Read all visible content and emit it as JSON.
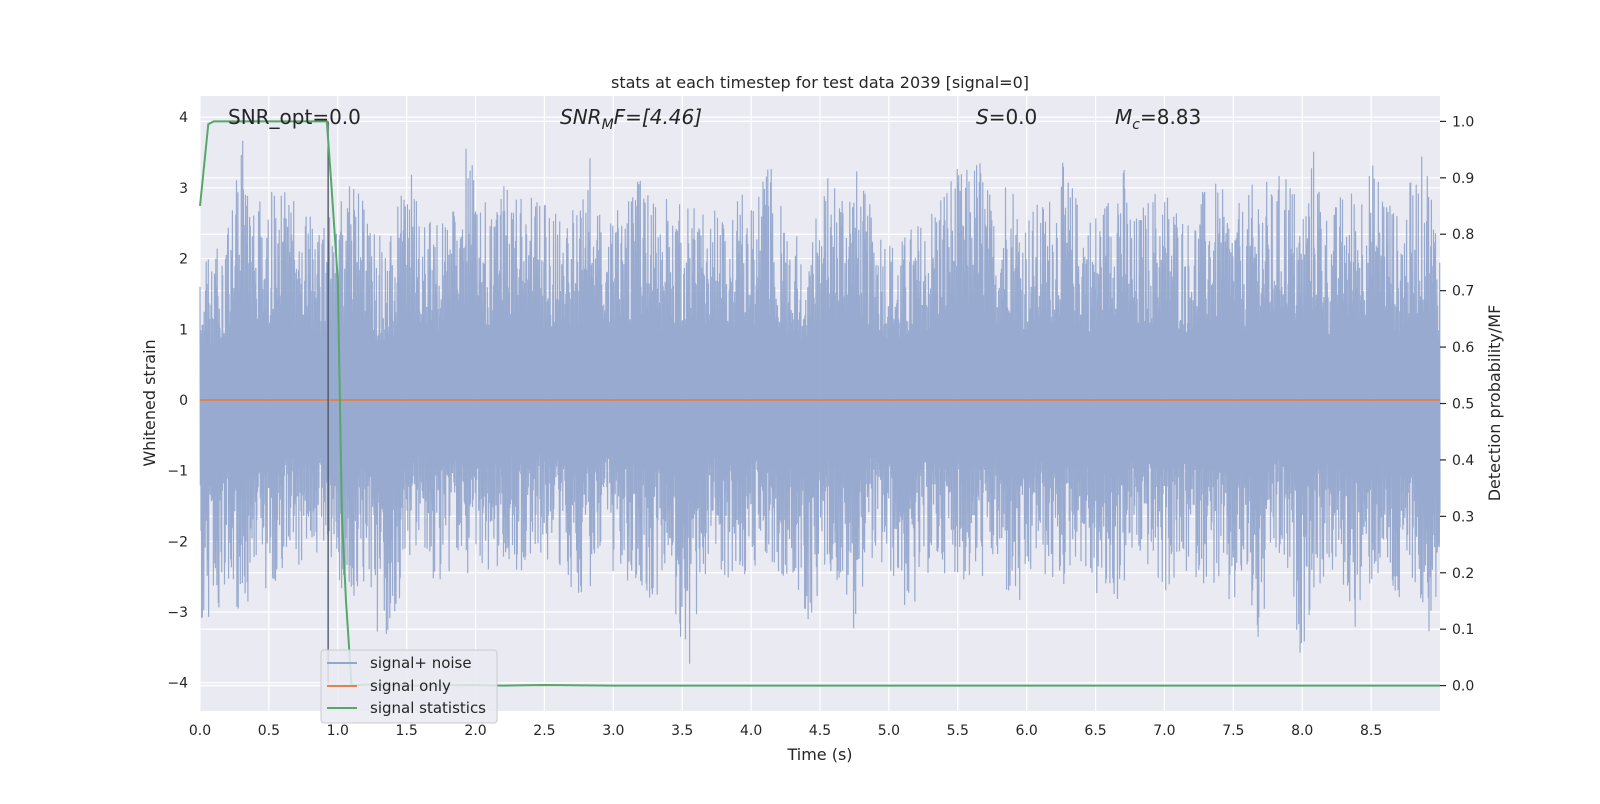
{
  "chart_data": {
    "type": "line",
    "title": "stats at each timestep for test data 2039 [signal=0]",
    "xlabel": "Time (s)",
    "ylabel": "Whitened strain",
    "ylabel_right": "Detection probability/MF",
    "xlim": [
      0.0,
      9.0
    ],
    "ylim": [
      -4.4,
      4.3
    ],
    "ylim_right": [
      -0.045,
      1.045
    ],
    "xticks": [
      "0.0",
      "0.5",
      "1.0",
      "1.5",
      "2.0",
      "2.5",
      "3.0",
      "3.5",
      "4.0",
      "4.5",
      "5.0",
      "5.5",
      "6.0",
      "6.5",
      "7.0",
      "7.5",
      "8.0",
      "8.5"
    ],
    "xtick_values": [
      0.0,
      0.5,
      1.0,
      1.5,
      2.0,
      2.5,
      3.0,
      3.5,
      4.0,
      4.5,
      5.0,
      5.5,
      6.0,
      6.5,
      7.0,
      7.5,
      8.0,
      8.5
    ],
    "yticks": [
      "4",
      "3",
      "2",
      "1",
      "0",
      "−1",
      "−2",
      "−3",
      "−4"
    ],
    "ytick_values": [
      4,
      3,
      2,
      1,
      0,
      -1,
      -2,
      -3,
      -4
    ],
    "yticks_right": [
      "1.0",
      "0.9",
      "0.8",
      "0.7",
      "0.6",
      "0.5",
      "0.4",
      "0.3",
      "0.2",
      "0.1",
      "0.0"
    ],
    "ytick_right_values": [
      1.0,
      0.9,
      0.8,
      0.7,
      0.6,
      0.5,
      0.4,
      0.3,
      0.2,
      0.1,
      0.0
    ],
    "grid": true,
    "legend_position": "lower-left",
    "annotations": {
      "snr_opt": "SNR_opt=0.0",
      "snr_mf_prefix": "SNR",
      "snr_mf_sub": "M",
      "snr_mf_suffix": "F=[4.46]",
      "s_prefix": "S",
      "s_suffix": "=0.0",
      "mc_prefix": "M",
      "mc_sub": "c",
      "mc_suffix": "=8.83"
    },
    "vertical_marker_x": 0.93,
    "series": [
      {
        "name": "signal+ noise",
        "color": "#94a6cc",
        "axis": "left",
        "kind": "noise",
        "envelope_pos": [
          2.0,
          2.3,
          2.6,
          3.85,
          2.8,
          3.0,
          3.2,
          2.9,
          2.6,
          2.5,
          3.0,
          3.1,
          2.7,
          2.3,
          2.6,
          3.4,
          2.7,
          2.6,
          2.5,
          3.85,
          2.9,
          2.7,
          3.1,
          2.9,
          3.0,
          2.7,
          2.8,
          2.9,
          3.5,
          2.6,
          2.9,
          3.0,
          3.4,
          2.8,
          2.9,
          2.8,
          2.9,
          3.2,
          2.4,
          3.3,
          2.9,
          3.5,
          2.5,
          2.4,
          2.5,
          3.2,
          3.3,
          3.4,
          2.8,
          2.6,
          2.2,
          2.5,
          2.6,
          3.1,
          3.3,
          3.3,
          3.6,
          2.7,
          3.5,
          2.7,
          2.8,
          3.0,
          3.4,
          2.9,
          2.7,
          2.9,
          3.7,
          2.6,
          2.9,
          3.2,
          2.9,
          2.6,
          3.0,
          3.1,
          2.8,
          2.8,
          3.3,
          3.0,
          3.5,
          2.7,
          3.7,
          2.6,
          3.0,
          3.1,
          3.4,
          3.3,
          2.6,
          3.2,
          3.6,
          2.4
        ],
        "envelope_neg": [
          -3.1,
          -3.55,
          -2.6,
          -3.2,
          -2.6,
          -2.8,
          -2.4,
          -2.3,
          -2.6,
          -2.0,
          -2.8,
          -3.0,
          -2.5,
          -3.7,
          -3.0,
          -2.4,
          -2.0,
          -2.8,
          -2.4,
          -2.6,
          -2.4,
          -2.6,
          -2.2,
          -2.5,
          -2.1,
          -2.3,
          -2.5,
          -2.8,
          -2.7,
          -2.1,
          -2.7,
          -2.5,
          -2.8,
          -2.8,
          -3.0,
          -4.0,
          -2.7,
          -2.3,
          -2.6,
          -2.6,
          -2.4,
          -2.5,
          -2.5,
          -3.0,
          -3.4,
          -2.3,
          -2.8,
          -3.3,
          -2.2,
          -2.5,
          -2.6,
          -3.3,
          -2.5,
          -2.5,
          -2.4,
          -2.7,
          -2.6,
          -2.4,
          -2.9,
          -3.2,
          -2.3,
          -2.7,
          -2.7,
          -2.2,
          -2.8,
          -3.0,
          -2.9,
          -2.3,
          -2.4,
          -2.8,
          -2.7,
          -2.5,
          -2.6,
          -2.7,
          -3.2,
          -2.6,
          -3.75,
          -2.3,
          -2.6,
          -3.65,
          -2.8,
          -2.5,
          -2.7,
          -3.3,
          -2.7,
          -2.5,
          -3.2,
          -2.5,
          -3.5,
          -3.0
        ]
      },
      {
        "name": "signal only",
        "color": "#dd8452",
        "axis": "left",
        "x": [
          0.0,
          9.0
        ],
        "y": [
          0.0,
          0.0
        ]
      },
      {
        "name": "signal statistics",
        "color": "#55a868",
        "axis": "right",
        "x": [
          0.0,
          0.06,
          0.1,
          0.2,
          0.4,
          0.6,
          0.8,
          0.92,
          0.95,
          1.0,
          1.03,
          1.06,
          1.1,
          1.2,
          1.5,
          2.0,
          2.2,
          2.5,
          3.0,
          9.0
        ],
        "y": [
          0.85,
          0.995,
          1.0,
          1.0,
          1.0,
          1.0,
          1.0,
          1.0,
          0.9,
          0.72,
          0.3,
          0.15,
          0.0,
          0.002,
          0.0,
          0.001,
          0.0,
          0.001,
          0.0,
          0.0
        ]
      }
    ]
  }
}
